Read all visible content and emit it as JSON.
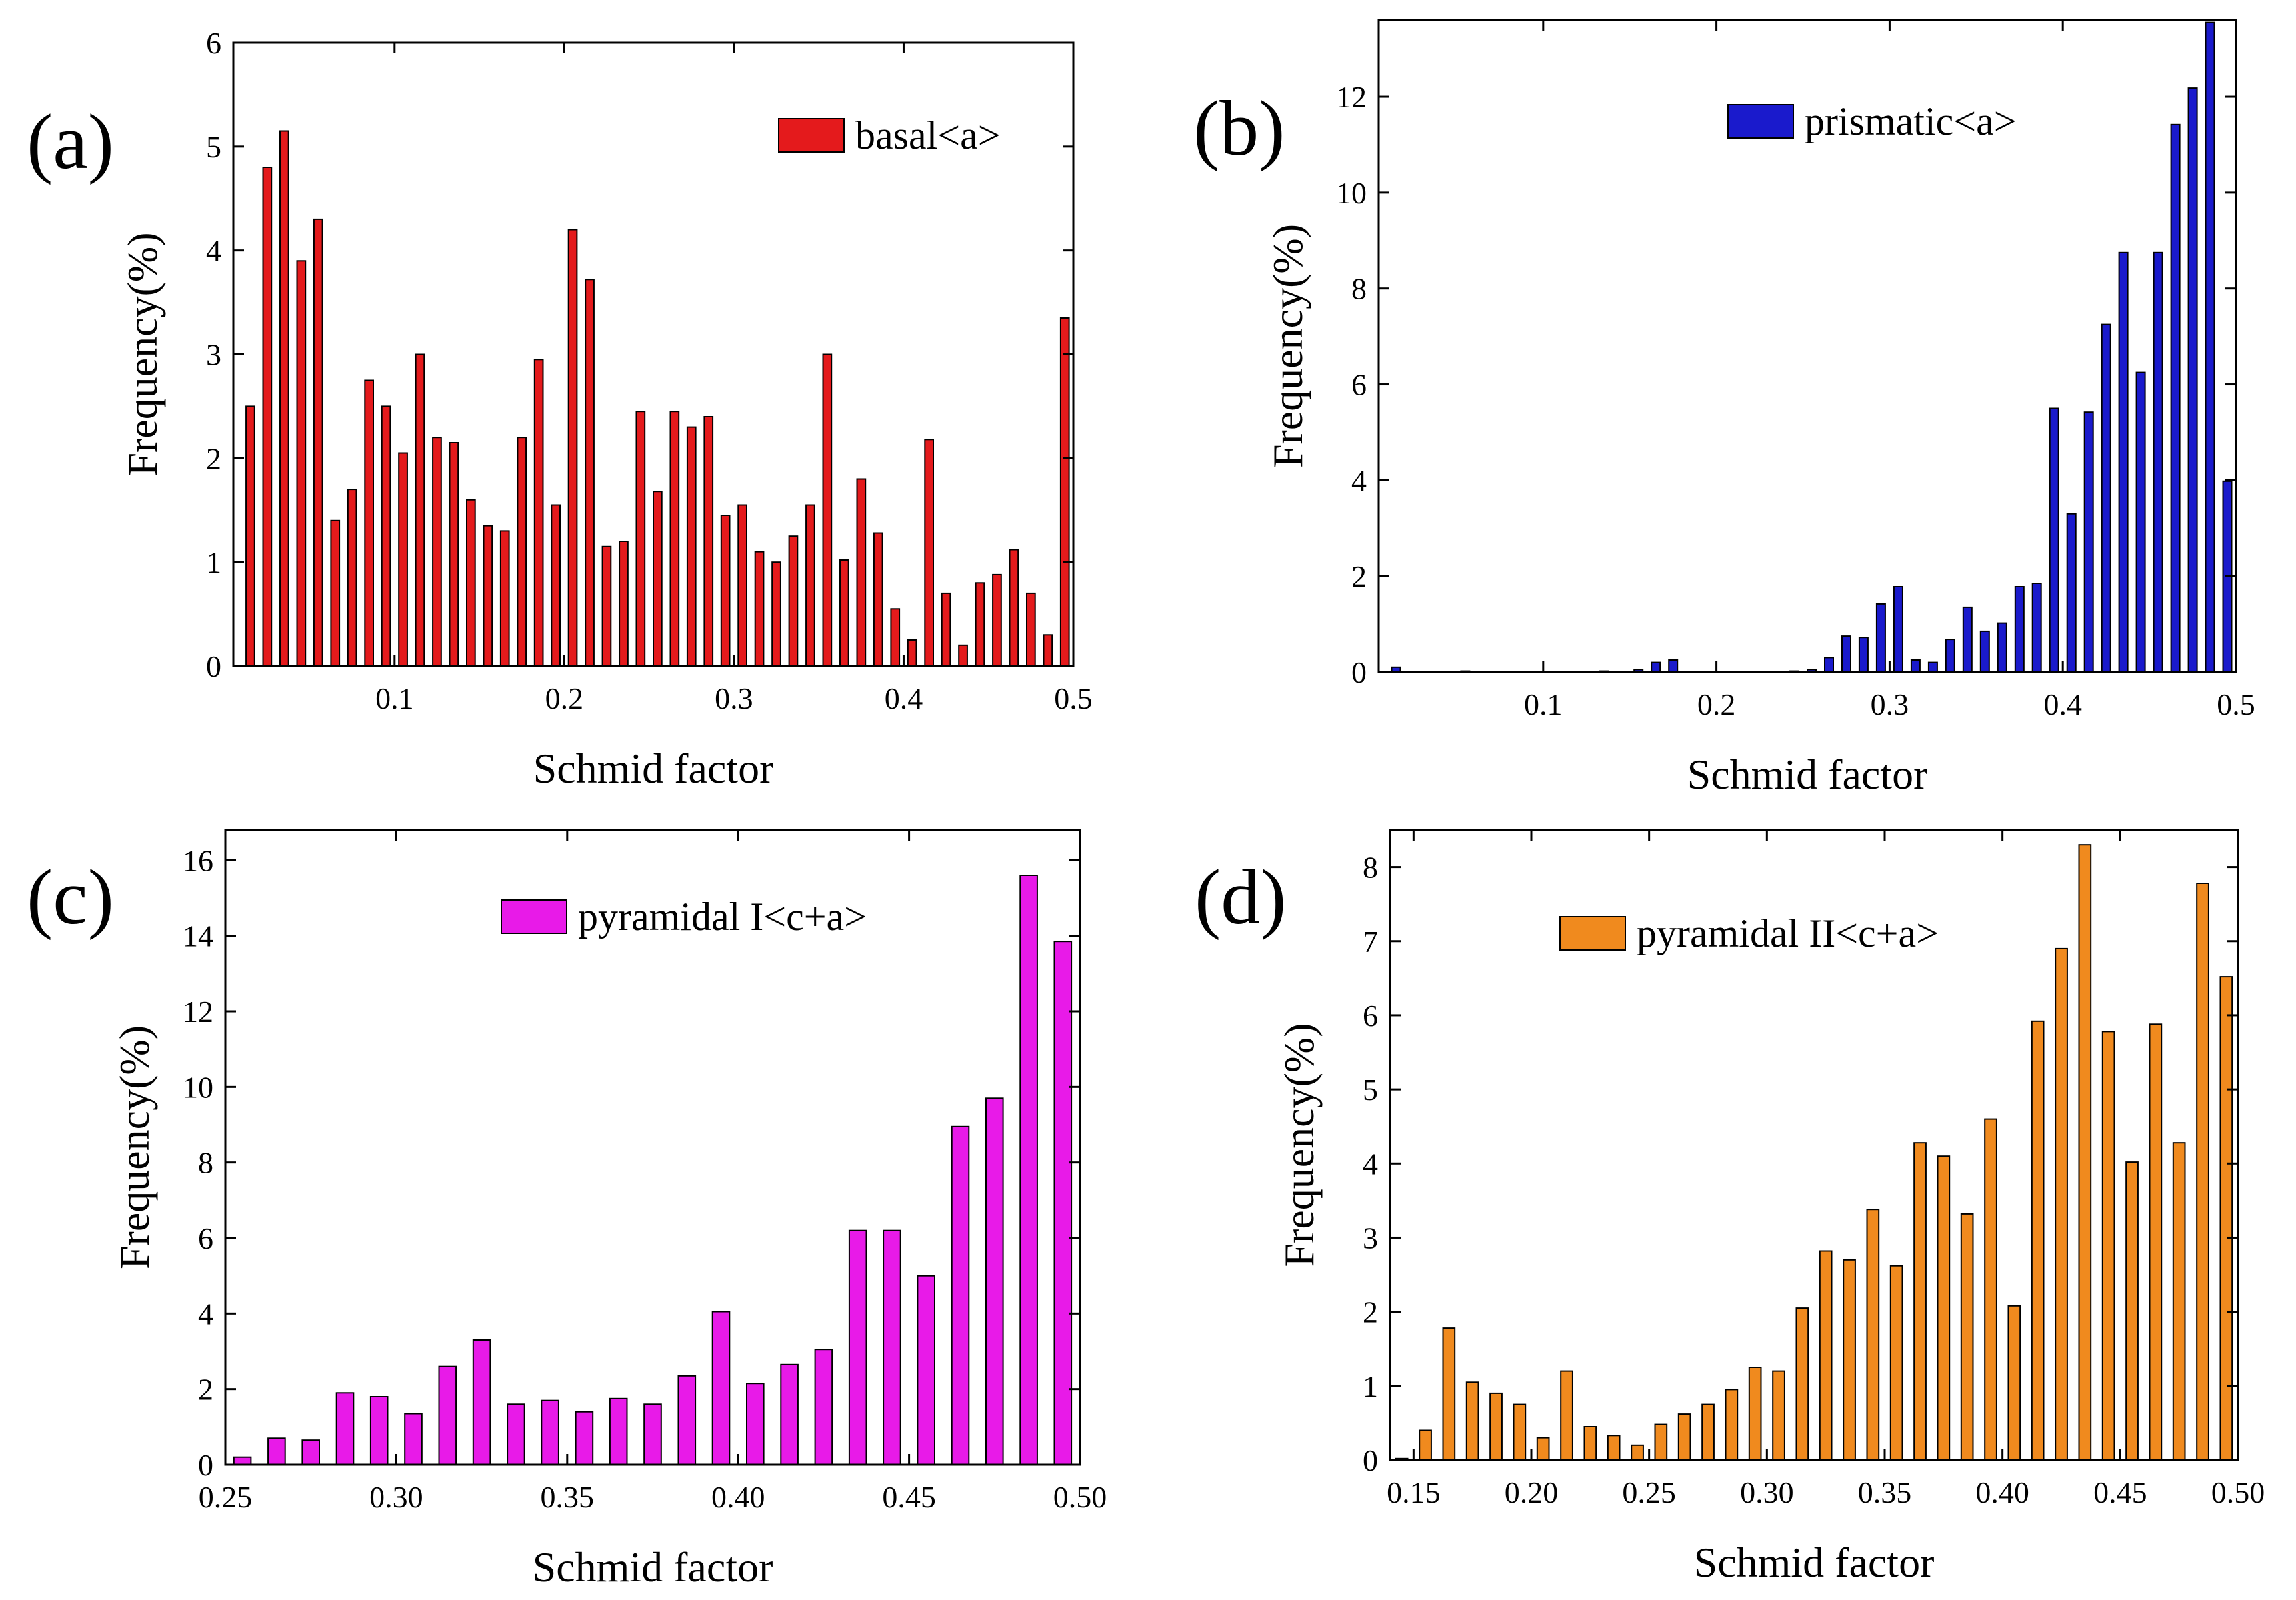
{
  "chart_data": [
    {
      "id": "a",
      "panel_label": "(a)",
      "type": "bar",
      "legend": "basal<a>",
      "color": "#E41A1C",
      "xlabel": "Schmid factor",
      "ylabel": "Frequency(%)",
      "xlim": [
        0.005,
        0.5
      ],
      "ylim": [
        0,
        6
      ],
      "xticks": [
        0.1,
        0.2,
        0.3,
        0.4,
        0.5
      ],
      "xtick_labels": [
        "0.1",
        "0.2",
        "0.3",
        "0.4",
        "0.5"
      ],
      "yticks": [
        0,
        1,
        2,
        3,
        4,
        5,
        6
      ],
      "ytick_labels": [
        "0",
        "1",
        "2",
        "3",
        "4",
        "5",
        "6"
      ],
      "bar_width": 0.005,
      "x": [
        0.015,
        0.025,
        0.035,
        0.045,
        0.055,
        0.065,
        0.075,
        0.085,
        0.095,
        0.105,
        0.115,
        0.125,
        0.135,
        0.145,
        0.155,
        0.165,
        0.175,
        0.185,
        0.195,
        0.205,
        0.215,
        0.225,
        0.235,
        0.245,
        0.255,
        0.265,
        0.275,
        0.285,
        0.295,
        0.305,
        0.315,
        0.325,
        0.335,
        0.345,
        0.355,
        0.365,
        0.375,
        0.385,
        0.395,
        0.405,
        0.415,
        0.425,
        0.435,
        0.445,
        0.455,
        0.465,
        0.475,
        0.485,
        0.495
      ],
      "values": [
        2.5,
        4.8,
        5.15,
        3.9,
        4.3,
        1.4,
        1.7,
        2.75,
        2.5,
        2.05,
        3.0,
        2.2,
        2.15,
        1.6,
        1.35,
        1.3,
        2.2,
        2.95,
        1.55,
        4.2,
        3.72,
        1.15,
        1.2,
        2.45,
        1.68,
        2.45,
        2.3,
        2.4,
        1.45,
        1.55,
        1.1,
        1.0,
        1.25,
        1.55,
        3.0,
        1.02,
        1.8,
        1.28,
        0.55,
        0.25,
        2.18,
        0.7,
        0.2,
        0.8,
        0.88,
        1.12,
        0.7,
        0.3,
        3.35
      ]
    },
    {
      "id": "b",
      "panel_label": "(b)",
      "type": "bar",
      "legend": "prismatic<a>",
      "color": "#1A1ACC",
      "xlabel": "Schmid factor",
      "ylabel": "Frequency(%)",
      "xlim": [
        0.005,
        0.5
      ],
      "ylim": [
        0,
        13.6
      ],
      "xticks": [
        0.1,
        0.2,
        0.3,
        0.4,
        0.5
      ],
      "xtick_labels": [
        "0.1",
        "0.2",
        "0.3",
        "0.4",
        "0.5"
      ],
      "yticks": [
        0,
        2,
        4,
        6,
        8,
        10,
        12
      ],
      "ytick_labels": [
        "0",
        "2",
        "4",
        "6",
        "8",
        "10",
        "12"
      ],
      "bar_width": 0.005,
      "x": [
        0.015,
        0.055,
        0.135,
        0.155,
        0.165,
        0.175,
        0.245,
        0.255,
        0.265,
        0.275,
        0.285,
        0.295,
        0.305,
        0.315,
        0.325,
        0.335,
        0.345,
        0.355,
        0.365,
        0.375,
        0.385,
        0.395,
        0.405,
        0.415,
        0.425,
        0.435,
        0.445,
        0.455,
        0.465,
        0.475,
        0.485,
        0.495
      ],
      "values": [
        0.1,
        0.02,
        0.02,
        0.05,
        0.2,
        0.25,
        0.02,
        0.05,
        0.3,
        0.75,
        0.72,
        1.42,
        1.78,
        0.25,
        0.2,
        0.68,
        1.35,
        0.85,
        1.02,
        1.78,
        1.85,
        5.5,
        3.3,
        5.42,
        7.25,
        8.75,
        6.25,
        8.75,
        11.42,
        12.18,
        13.55,
        3.98
      ]
    },
    {
      "id": "c",
      "panel_label": "(c)",
      "type": "bar",
      "legend": "pyramidal I<c+a>",
      "color": "#E81AE8",
      "xlabel": "Schmid factor",
      "ylabel": "Frequency(%)",
      "xlim": [
        0.25,
        0.5
      ],
      "ylim": [
        0,
        16.8
      ],
      "xticks": [
        0.25,
        0.3,
        0.35,
        0.4,
        0.45,
        0.5
      ],
      "xtick_labels": [
        "0.25",
        "0.30",
        "0.35",
        "0.40",
        "0.45",
        "0.50"
      ],
      "yticks": [
        0,
        2,
        4,
        6,
        8,
        10,
        12,
        14,
        16
      ],
      "ytick_labels": [
        "0",
        "2",
        "4",
        "6",
        "8",
        "10",
        "12",
        "14",
        "16"
      ],
      "bar_width": 0.005,
      "x": [
        0.255,
        0.265,
        0.275,
        0.285,
        0.295,
        0.305,
        0.315,
        0.325,
        0.335,
        0.345,
        0.355,
        0.365,
        0.375,
        0.385,
        0.395,
        0.405,
        0.415,
        0.425,
        0.435,
        0.445,
        0.455,
        0.465,
        0.475,
        0.485,
        0.495
      ],
      "values": [
        0.2,
        0.7,
        0.65,
        1.9,
        1.8,
        1.35,
        2.6,
        3.3,
        1.6,
        1.7,
        1.4,
        1.75,
        1.6,
        2.35,
        4.05,
        2.15,
        2.65,
        3.05,
        6.2,
        6.2,
        5.0,
        8.95,
        9.7,
        15.6,
        13.85
      ]
    },
    {
      "id": "d",
      "panel_label": "(d)",
      "type": "bar",
      "legend": "pyramidal II<c+a>",
      "color": "#F08A1E",
      "xlabel": "Schmid factor",
      "ylabel": "Frequency(%)",
      "xlim": [
        0.14,
        0.5
      ],
      "ylim": [
        0,
        8.5
      ],
      "xticks": [
        0.15,
        0.2,
        0.25,
        0.3,
        0.35,
        0.4,
        0.45,
        0.5
      ],
      "xtick_labels": [
        "0.15",
        "0.20",
        "0.25",
        "0.30",
        "0.35",
        "0.40",
        "0.45",
        "0.50"
      ],
      "yticks": [
        0,
        1,
        2,
        3,
        4,
        5,
        6,
        7,
        8
      ],
      "ytick_labels": [
        "0",
        "1",
        "2",
        "3",
        "4",
        "5",
        "6",
        "7",
        "8"
      ],
      "bar_width": 0.005,
      "x": [
        0.145,
        0.155,
        0.165,
        0.175,
        0.185,
        0.195,
        0.205,
        0.215,
        0.225,
        0.235,
        0.245,
        0.255,
        0.265,
        0.275,
        0.285,
        0.295,
        0.305,
        0.315,
        0.325,
        0.335,
        0.345,
        0.355,
        0.365,
        0.375,
        0.385,
        0.395,
        0.405,
        0.415,
        0.425,
        0.435,
        0.445,
        0.455,
        0.465,
        0.475,
        0.485,
        0.495
      ],
      "values": [
        0.02,
        0.4,
        1.78,
        1.05,
        0.9,
        0.75,
        0.3,
        1.2,
        0.45,
        0.33,
        0.2,
        0.48,
        0.62,
        0.75,
        0.95,
        1.25,
        1.2,
        2.05,
        2.82,
        2.7,
        3.38,
        2.62,
        4.28,
        4.1,
        3.32,
        4.6,
        2.08,
        5.92,
        6.9,
        8.3,
        5.78,
        4.02,
        5.88,
        4.28,
        7.78,
        6.52
      ]
    }
  ]
}
